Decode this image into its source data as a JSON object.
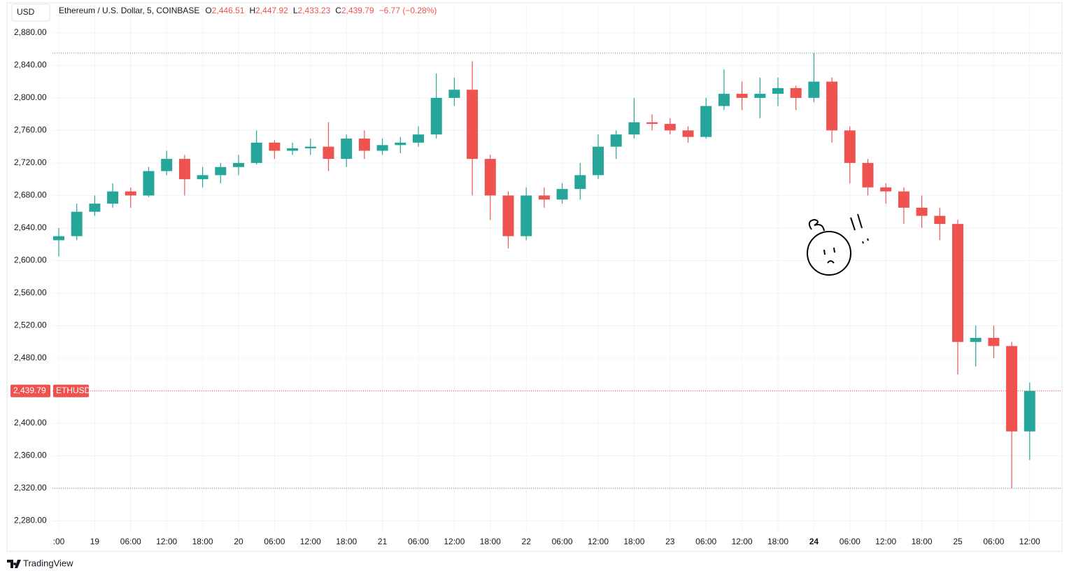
{
  "chart_data": {
    "type": "candlestick",
    "currency": "USD",
    "title": "Ethereum / U.S. Dollar, 5, COINBASE",
    "legend_values": [
      {
        "label": "O",
        "value": "2,446.51"
      },
      {
        "label": "H",
        "value": "2,447.92"
      },
      {
        "label": "L",
        "value": "2,433.23"
      },
      {
        "label": "C",
        "value": "2,439.79"
      }
    ],
    "change": "−6.77 (−0.28%)",
    "last_price_label": "2,439.79",
    "symbol": "ETHUSD",
    "watermark": "TradingView",
    "up_color": "#26a69a",
    "down_color": "#ef5350",
    "grid": true,
    "categories": [
      ":00",
      null,
      "19",
      null,
      "06:00",
      null,
      "12:00",
      null,
      "18:00",
      null,
      "20",
      null,
      "06:00",
      null,
      "12:00",
      null,
      "18:00",
      null,
      "21",
      null,
      "06:00",
      null,
      "12:00",
      null,
      "18:00",
      null,
      "22",
      null,
      "06:00",
      null,
      "12:00",
      null,
      "18:00",
      null,
      "23",
      null,
      "06:00",
      null,
      "12:00",
      null,
      "18:00",
      null,
      "24",
      null,
      "06:00",
      null,
      "12:00",
      null,
      "18:00",
      null,
      "25",
      null,
      "06:00",
      null,
      "12:00"
    ],
    "open": [
      2625,
      2630,
      2660,
      2670,
      2685,
      2680,
      2710,
      2725,
      2700,
      2705,
      2715,
      2720,
      2745,
      2735,
      2738,
      2740,
      2725,
      2750,
      2735,
      2742,
      2745,
      2755,
      2800,
      2810,
      2725,
      2680,
      2630,
      2680,
      2675,
      2688,
      2705,
      2740,
      2755,
      2770,
      2768,
      2760,
      2752,
      2790,
      2805,
      2800,
      2805,
      2812,
      2800,
      2820,
      2760,
      2720,
      2690,
      2685,
      2665,
      2655,
      2645,
      2500,
      2505,
      2495,
      2390
    ],
    "high": [
      2640,
      2670,
      2680,
      2695,
      2690,
      2715,
      2735,
      2730,
      2715,
      2720,
      2730,
      2760,
      2748,
      2745,
      2750,
      2770,
      2755,
      2760,
      2750,
      2752,
      2765,
      2830,
      2825,
      2845,
      2730,
      2685,
      2690,
      2690,
      2695,
      2720,
      2755,
      2760,
      2800,
      2780,
      2775,
      2765,
      2800,
      2835,
      2820,
      2825,
      2825,
      2815,
      2855,
      2825,
      2765,
      2725,
      2695,
      2690,
      2680,
      2665,
      2650,
      2520,
      2520,
      2500,
      2450
    ],
    "low": [
      2605,
      2625,
      2655,
      2665,
      2665,
      2678,
      2705,
      2680,
      2690,
      2695,
      2705,
      2718,
      2725,
      2730,
      2730,
      2710,
      2715,
      2725,
      2730,
      2732,
      2740,
      2750,
      2790,
      2680,
      2650,
      2615,
      2625,
      2665,
      2670,
      2675,
      2700,
      2725,
      2750,
      2760,
      2755,
      2745,
      2750,
      2785,
      2785,
      2775,
      2790,
      2785,
      2795,
      2745,
      2695,
      2680,
      2670,
      2645,
      2640,
      2625,
      2460,
      2470,
      2480,
      2320,
      2355
    ],
    "close": [
      2630,
      2660,
      2670,
      2685,
      2680,
      2710,
      2725,
      2700,
      2705,
      2715,
      2720,
      2745,
      2735,
      2738,
      2740,
      2725,
      2750,
      2735,
      2742,
      2745,
      2755,
      2800,
      2810,
      2725,
      2680,
      2630,
      2680,
      2675,
      2688,
      2705,
      2740,
      2755,
      2770,
      2768,
      2760,
      2752,
      2790,
      2805,
      2800,
      2805,
      2812,
      2800,
      2820,
      2760,
      2720,
      2690,
      2685,
      2665,
      2655,
      2645,
      2500,
      2505,
      2495,
      2390,
      2439.79
    ],
    "ylim": [
      2265,
      2916
    ],
    "yticks": [
      {
        "value": 2280,
        "label": "2,280.00"
      },
      {
        "value": 2320,
        "label": "2,320.00"
      },
      {
        "value": 2360,
        "label": "2,360.00"
      },
      {
        "value": 2400,
        "label": "2,400.00"
      },
      {
        "value": 2440,
        "label": "2,440.00"
      },
      {
        "value": 2480,
        "label": "2,480.00"
      },
      {
        "value": 2520,
        "label": "2,520.00"
      },
      {
        "value": 2560,
        "label": "2,560.00"
      },
      {
        "value": 2600,
        "label": "2,600.00"
      },
      {
        "value": 2640,
        "label": "2,640.00"
      },
      {
        "value": 2680,
        "label": "2,680.00"
      },
      {
        "value": 2720,
        "label": "2,720.00"
      },
      {
        "value": 2760,
        "label": "2,760.00"
      },
      {
        "value": 2800,
        "label": "2,800.00"
      },
      {
        "value": 2840,
        "label": "2,840.00"
      },
      {
        "value": 2880,
        "label": "2,880.00"
      }
    ]
  }
}
